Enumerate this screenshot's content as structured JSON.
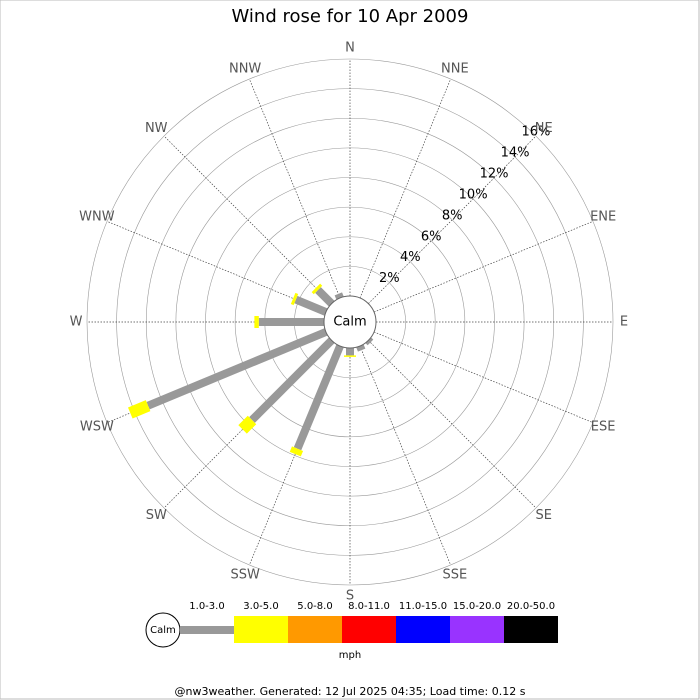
{
  "chart_data": {
    "type": "windrose",
    "title": "Wind rose for 10 Apr 2009",
    "directions": [
      "N",
      "NNE",
      "NE",
      "ENE",
      "E",
      "ESE",
      "SE",
      "SSE",
      "S",
      "SSW",
      "SW",
      "WSW",
      "W",
      "WNW",
      "NW",
      "NNW"
    ],
    "calm_label": "Calm",
    "unit_label": "mph",
    "series": [
      {
        "name": "1.0-3.0",
        "color": "#999999",
        "values": [
          0,
          0,
          0,
          0,
          0,
          0,
          0.2,
          0.3,
          0.5,
          7.5,
          7.6,
          13.0,
          4.4,
          2.2,
          1.3,
          0.3
        ]
      },
      {
        "name": "3.0-5.0",
        "color": "#ffff00",
        "values": [
          0,
          0,
          0,
          0,
          0,
          0,
          0,
          0,
          0.1,
          0.4,
          0.9,
          1.3,
          0.3,
          0.2,
          0.2,
          0
        ]
      },
      {
        "name": "5.0-8.0",
        "color": "#ff9900",
        "values": [
          0,
          0,
          0,
          0,
          0,
          0,
          0,
          0,
          0,
          0,
          0,
          0,
          0,
          0,
          0,
          0
        ]
      },
      {
        "name": "8.0-11.0",
        "color": "#ff0000",
        "values": [
          0,
          0,
          0,
          0,
          0,
          0,
          0,
          0,
          0,
          0,
          0,
          0,
          0,
          0,
          0,
          0
        ]
      },
      {
        "name": "11.0-15.0",
        "color": "#0000ff",
        "values": [
          0,
          0,
          0,
          0,
          0,
          0,
          0,
          0,
          0,
          0,
          0,
          0,
          0,
          0,
          0,
          0
        ]
      },
      {
        "name": "15.0-20.0",
        "color": "#9933ff",
        "values": [
          0,
          0,
          0,
          0,
          0,
          0,
          0,
          0,
          0,
          0,
          0,
          0,
          0,
          0,
          0,
          0
        ]
      },
      {
        "name": "20.0-50.0",
        "color": "#000000",
        "values": [
          0,
          0,
          0,
          0,
          0,
          0,
          0,
          0,
          0,
          0,
          0,
          0,
          0,
          0,
          0,
          0
        ]
      }
    ],
    "rlim": [
      0,
      16
    ],
    "rticks": [
      {
        "value": 2,
        "label": "2%"
      },
      {
        "value": 4,
        "label": "4%"
      },
      {
        "value": 6,
        "label": "6%"
      },
      {
        "value": 8,
        "label": "8%"
      },
      {
        "value": 10,
        "label": "10%"
      },
      {
        "value": 12,
        "label": "12%"
      },
      {
        "value": 14,
        "label": "14%"
      },
      {
        "value": 16,
        "label": "16%"
      }
    ],
    "footer": "@nw3weather. Generated: 12 Jul 2025 04:35; Load time: 0.12 s"
  }
}
